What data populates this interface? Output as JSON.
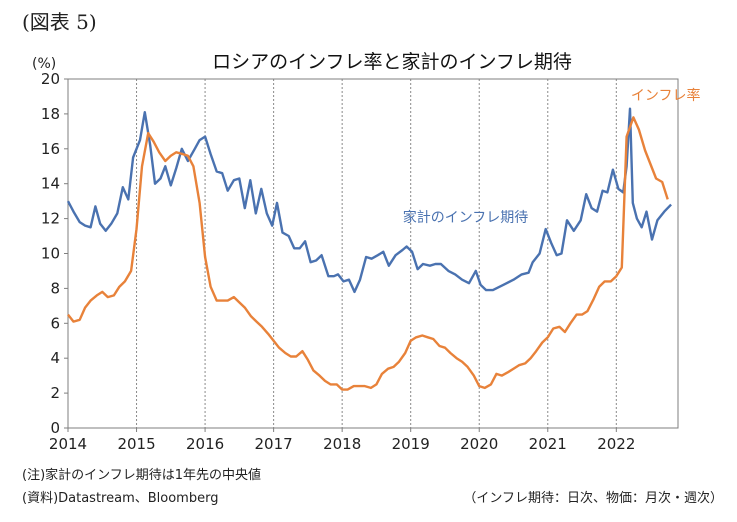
{
  "figure_label": "(図表 5)",
  "notes": {
    "note1": "(注)家計のインフレ期待は1年先の中央値",
    "source": "(資料)Datastream、Bloomberg",
    "frequency": "（インフレ期待：日次、物価：月次・週次）"
  },
  "chart_data": {
    "type": "line",
    "title": "ロシアのインフレ率と家計のインフレ期待",
    "ylabel": "(%)",
    "xlabel": "",
    "ylim": [
      0,
      20
    ],
    "xlim": [
      2014,
      2022.9
    ],
    "yticks": [
      0,
      2,
      4,
      6,
      8,
      10,
      12,
      14,
      16,
      18,
      20
    ],
    "xticks": [
      "2014",
      "2015",
      "2016",
      "2017",
      "2018",
      "2019",
      "2020",
      "2021",
      "2022"
    ],
    "grid": "vertical dashed at year boundaries",
    "series": [
      {
        "name": "家計のインフレ期待",
        "color": "#4a72b0",
        "label_position": "center",
        "points": [
          [
            2014.0,
            13.0
          ],
          [
            2014.08,
            12.4
          ],
          [
            2014.17,
            11.8
          ],
          [
            2014.25,
            11.6
          ],
          [
            2014.33,
            11.5
          ],
          [
            2014.4,
            12.7
          ],
          [
            2014.47,
            11.7
          ],
          [
            2014.55,
            11.3
          ],
          [
            2014.63,
            11.7
          ],
          [
            2014.72,
            12.3
          ],
          [
            2014.8,
            13.8
          ],
          [
            2014.88,
            13.1
          ],
          [
            2014.95,
            15.5
          ],
          [
            2015.05,
            16.5
          ],
          [
            2015.12,
            18.1
          ],
          [
            2015.2,
            16.2
          ],
          [
            2015.27,
            14.0
          ],
          [
            2015.35,
            14.3
          ],
          [
            2015.42,
            15.0
          ],
          [
            2015.5,
            13.9
          ],
          [
            2015.58,
            14.9
          ],
          [
            2015.66,
            16.0
          ],
          [
            2015.75,
            15.3
          ],
          [
            2015.85,
            16.0
          ],
          [
            2015.92,
            16.5
          ],
          [
            2016.0,
            16.7
          ],
          [
            2016.08,
            15.7
          ],
          [
            2016.17,
            14.7
          ],
          [
            2016.25,
            14.6
          ],
          [
            2016.33,
            13.6
          ],
          [
            2016.42,
            14.2
          ],
          [
            2016.5,
            14.3
          ],
          [
            2016.58,
            12.6
          ],
          [
            2016.66,
            14.2
          ],
          [
            2016.74,
            12.3
          ],
          [
            2016.82,
            13.7
          ],
          [
            2016.9,
            12.3
          ],
          [
            2016.98,
            11.6
          ],
          [
            2017.05,
            12.9
          ],
          [
            2017.13,
            11.2
          ],
          [
            2017.22,
            11.0
          ],
          [
            2017.3,
            10.3
          ],
          [
            2017.38,
            10.3
          ],
          [
            2017.46,
            10.7
          ],
          [
            2017.54,
            9.5
          ],
          [
            2017.62,
            9.6
          ],
          [
            2017.7,
            9.9
          ],
          [
            2017.8,
            8.7
          ],
          [
            2017.88,
            8.7
          ],
          [
            2017.94,
            8.8
          ],
          [
            2018.02,
            8.4
          ],
          [
            2018.1,
            8.5
          ],
          [
            2018.18,
            7.8
          ],
          [
            2018.26,
            8.5
          ],
          [
            2018.35,
            9.8
          ],
          [
            2018.43,
            9.7
          ],
          [
            2018.52,
            9.9
          ],
          [
            2018.6,
            10.1
          ],
          [
            2018.68,
            9.3
          ],
          [
            2018.78,
            9.9
          ],
          [
            2018.88,
            10.2
          ],
          [
            2018.94,
            10.4
          ],
          [
            2019.02,
            10.1
          ],
          [
            2019.1,
            9.1
          ],
          [
            2019.18,
            9.4
          ],
          [
            2019.28,
            9.3
          ],
          [
            2019.36,
            9.4
          ],
          [
            2019.44,
            9.4
          ],
          [
            2019.55,
            9.0
          ],
          [
            2019.65,
            8.8
          ],
          [
            2019.75,
            8.5
          ],
          [
            2019.85,
            8.3
          ],
          [
            2019.95,
            9.0
          ],
          [
            2020.02,
            8.2
          ],
          [
            2020.1,
            7.9
          ],
          [
            2020.2,
            7.9
          ],
          [
            2020.35,
            8.2
          ],
          [
            2020.5,
            8.5
          ],
          [
            2020.62,
            8.8
          ],
          [
            2020.72,
            8.9
          ],
          [
            2020.78,
            9.5
          ],
          [
            2020.88,
            10.0
          ],
          [
            2020.97,
            11.4
          ],
          [
            2021.05,
            10.6
          ],
          [
            2021.13,
            9.9
          ],
          [
            2021.2,
            10.0
          ],
          [
            2021.28,
            11.9
          ],
          [
            2021.38,
            11.3
          ],
          [
            2021.48,
            11.9
          ],
          [
            2021.56,
            13.4
          ],
          [
            2021.64,
            12.6
          ],
          [
            2021.72,
            12.4
          ],
          [
            2021.8,
            13.6
          ],
          [
            2021.87,
            13.5
          ],
          [
            2021.95,
            14.8
          ],
          [
            2022.03,
            13.7
          ],
          [
            2022.1,
            13.5
          ],
          [
            2022.15,
            15.0
          ],
          [
            2022.2,
            18.3
          ],
          [
            2022.24,
            12.9
          ],
          [
            2022.3,
            12.0
          ],
          [
            2022.37,
            11.5
          ],
          [
            2022.44,
            12.4
          ],
          [
            2022.52,
            10.8
          ],
          [
            2022.6,
            11.9
          ],
          [
            2022.7,
            12.4
          ],
          [
            2022.8,
            12.8
          ]
        ]
      },
      {
        "name": "インフレ率",
        "color": "#e8823a",
        "label_position": "top-right",
        "points": [
          [
            2014.0,
            6.5
          ],
          [
            2014.08,
            6.1
          ],
          [
            2014.17,
            6.2
          ],
          [
            2014.25,
            6.9
          ],
          [
            2014.33,
            7.3
          ],
          [
            2014.42,
            7.6
          ],
          [
            2014.5,
            7.8
          ],
          [
            2014.58,
            7.5
          ],
          [
            2014.67,
            7.6
          ],
          [
            2014.75,
            8.1
          ],
          [
            2014.83,
            8.4
          ],
          [
            2014.92,
            9.0
          ],
          [
            2015.0,
            11.4
          ],
          [
            2015.08,
            15.0
          ],
          [
            2015.17,
            16.9
          ],
          [
            2015.25,
            16.4
          ],
          [
            2015.33,
            15.8
          ],
          [
            2015.42,
            15.3
          ],
          [
            2015.5,
            15.6
          ],
          [
            2015.58,
            15.8
          ],
          [
            2015.67,
            15.7
          ],
          [
            2015.75,
            15.6
          ],
          [
            2015.83,
            15.0
          ],
          [
            2015.92,
            12.9
          ],
          [
            2016.0,
            9.8
          ],
          [
            2016.08,
            8.1
          ],
          [
            2016.17,
            7.3
          ],
          [
            2016.25,
            7.3
          ],
          [
            2016.33,
            7.3
          ],
          [
            2016.42,
            7.5
          ],
          [
            2016.5,
            7.2
          ],
          [
            2016.58,
            6.9
          ],
          [
            2016.67,
            6.4
          ],
          [
            2016.75,
            6.1
          ],
          [
            2016.83,
            5.8
          ],
          [
            2016.92,
            5.4
          ],
          [
            2017.0,
            5.0
          ],
          [
            2017.08,
            4.6
          ],
          [
            2017.17,
            4.3
          ],
          [
            2017.25,
            4.1
          ],
          [
            2017.33,
            4.1
          ],
          [
            2017.42,
            4.4
          ],
          [
            2017.5,
            3.9
          ],
          [
            2017.58,
            3.3
          ],
          [
            2017.67,
            3.0
          ],
          [
            2017.75,
            2.7
          ],
          [
            2017.83,
            2.5
          ],
          [
            2017.92,
            2.5
          ],
          [
            2018.0,
            2.2
          ],
          [
            2018.08,
            2.2
          ],
          [
            2018.17,
            2.4
          ],
          [
            2018.25,
            2.4
          ],
          [
            2018.33,
            2.4
          ],
          [
            2018.42,
            2.3
          ],
          [
            2018.5,
            2.5
          ],
          [
            2018.58,
            3.1
          ],
          [
            2018.67,
            3.4
          ],
          [
            2018.75,
            3.5
          ],
          [
            2018.83,
            3.8
          ],
          [
            2018.92,
            4.3
          ],
          [
            2019.0,
            5.0
          ],
          [
            2019.08,
            5.2
          ],
          [
            2019.17,
            5.3
          ],
          [
            2019.25,
            5.2
          ],
          [
            2019.33,
            5.1
          ],
          [
            2019.42,
            4.7
          ],
          [
            2019.5,
            4.6
          ],
          [
            2019.58,
            4.3
          ],
          [
            2019.67,
            4.0
          ],
          [
            2019.75,
            3.8
          ],
          [
            2019.83,
            3.5
          ],
          [
            2019.92,
            3.0
          ],
          [
            2020.0,
            2.4
          ],
          [
            2020.08,
            2.3
          ],
          [
            2020.17,
            2.5
          ],
          [
            2020.25,
            3.1
          ],
          [
            2020.33,
            3.0
          ],
          [
            2020.42,
            3.2
          ],
          [
            2020.5,
            3.4
          ],
          [
            2020.58,
            3.6
          ],
          [
            2020.67,
            3.7
          ],
          [
            2020.75,
            4.0
          ],
          [
            2020.83,
            4.4
          ],
          [
            2020.92,
            4.9
          ],
          [
            2021.0,
            5.2
          ],
          [
            2021.08,
            5.7
          ],
          [
            2021.17,
            5.8
          ],
          [
            2021.25,
            5.5
          ],
          [
            2021.33,
            6.0
          ],
          [
            2021.42,
            6.5
          ],
          [
            2021.5,
            6.5
          ],
          [
            2021.58,
            6.7
          ],
          [
            2021.67,
            7.4
          ],
          [
            2021.75,
            8.1
          ],
          [
            2021.83,
            8.4
          ],
          [
            2021.92,
            8.4
          ],
          [
            2022.0,
            8.7
          ],
          [
            2022.08,
            9.2
          ],
          [
            2022.15,
            16.7
          ],
          [
            2022.25,
            17.8
          ],
          [
            2022.33,
            17.1
          ],
          [
            2022.42,
            15.9
          ],
          [
            2022.5,
            15.1
          ],
          [
            2022.58,
            14.3
          ],
          [
            2022.67,
            14.1
          ],
          [
            2022.75,
            13.1
          ]
        ]
      }
    ]
  }
}
